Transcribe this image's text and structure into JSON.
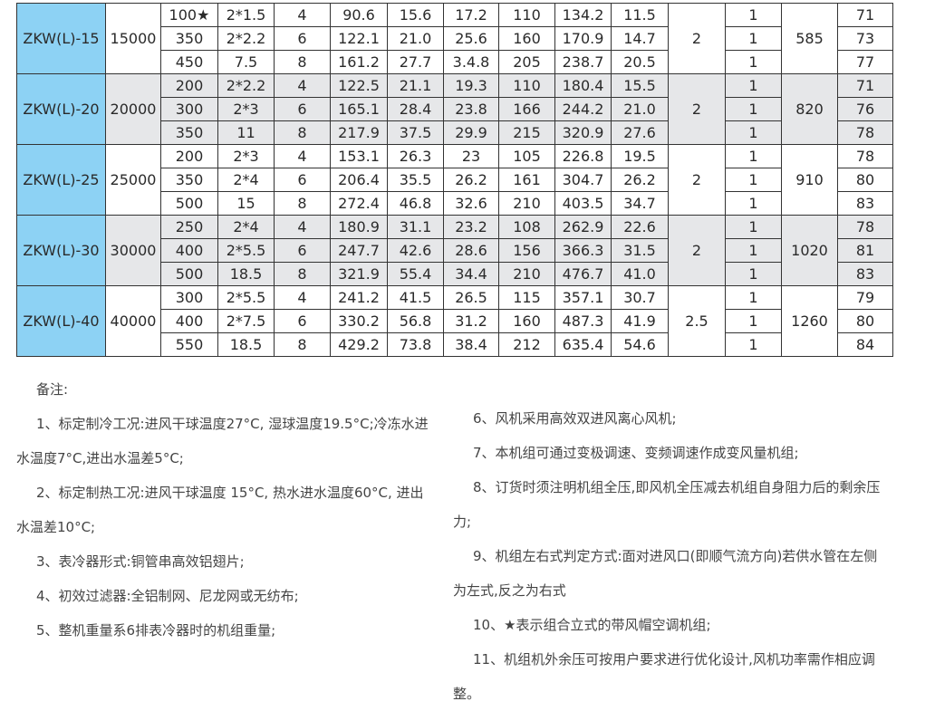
{
  "table": {
    "groups": [
      {
        "model": "ZKW(L)-15",
        "airflow": "15000",
        "col11": "2",
        "weight": "585",
        "shade": false,
        "rows": [
          [
            "100★",
            "2*1.5",
            "4",
            "90.6",
            "15.6",
            "17.2",
            "110",
            "134.2",
            "11.5",
            "1",
            "71"
          ],
          [
            "350",
            "2*2.2",
            "6",
            "122.1",
            "21.0",
            "25.6",
            "160",
            "170.9",
            "14.7",
            "1",
            "73"
          ],
          [
            "450",
            "7.5",
            "8",
            "161.2",
            "27.7",
            "3.4.8",
            "205",
            "238.7",
            "20.5",
            "1",
            "77"
          ]
        ]
      },
      {
        "model": "ZKW(L)-20",
        "airflow": "20000",
        "col11": "2",
        "weight": "820",
        "shade": true,
        "rows": [
          [
            "200",
            "2*2.2",
            "4",
            "122.5",
            "21.1",
            "19.3",
            "110",
            "180.4",
            "15.5",
            "1",
            "71"
          ],
          [
            "300",
            "2*3",
            "6",
            "165.1",
            "28.4",
            "23.8",
            "166",
            "244.2",
            "21.0",
            "1",
            "76"
          ],
          [
            "350",
            "11",
            "8",
            "217.9",
            "37.5",
            "29.9",
            "215",
            "320.9",
            "27.6",
            "1",
            "78"
          ]
        ]
      },
      {
        "model": "ZKW(L)-25",
        "airflow": "25000",
        "col11": "2",
        "weight": "910",
        "shade": false,
        "rows": [
          [
            "200",
            "2*3",
            "4",
            "153.1",
            "26.3",
            "23",
            "105",
            "226.8",
            "19.5",
            "1",
            "78"
          ],
          [
            "350",
            "2*4",
            "6",
            "206.4",
            "35.5",
            "26.2",
            "161",
            "304.7",
            "26.2",
            "1",
            "80"
          ],
          [
            "500",
            "15",
            "8",
            "272.4",
            "46.8",
            "32.6",
            "210",
            "403.5",
            "34.7",
            "1",
            "83"
          ]
        ]
      },
      {
        "model": "ZKW(L)-30",
        "airflow": "30000",
        "col11": "2",
        "weight": "1020",
        "shade": true,
        "rows": [
          [
            "250",
            "2*4",
            "4",
            "180.9",
            "31.1",
            "23.2",
            "108",
            "262.9",
            "22.6",
            "1",
            "78"
          ],
          [
            "400",
            "2*5.5",
            "6",
            "247.7",
            "42.6",
            "28.6",
            "156",
            "366.3",
            "31.5",
            "1",
            "81"
          ],
          [
            "500",
            "18.5",
            "8",
            "321.9",
            "55.4",
            "34.4",
            "210",
            "476.7",
            "41.0",
            "1",
            "83"
          ]
        ]
      },
      {
        "model": "ZKW(L)-40",
        "airflow": "40000",
        "col11": "2.5",
        "weight": "1260",
        "shade": false,
        "rows": [
          [
            "300",
            "2*5.5",
            "4",
            "241.2",
            "41.5",
            "26.5",
            "115",
            "357.1",
            "30.7",
            "1",
            "79"
          ],
          [
            "400",
            "2*7.5",
            "6",
            "330.2",
            "56.8",
            "31.2",
            "160",
            "487.3",
            "41.9",
            "1",
            "80"
          ],
          [
            "550",
            "18.5",
            "8",
            "429.2",
            "73.8",
            "38.4",
            "212",
            "635.4",
            "54.6",
            "1",
            "84"
          ]
        ]
      }
    ],
    "colors": {
      "model_bg": "#8dd2f4",
      "shade_bg": "#e6e7e9"
    }
  },
  "notes": {
    "title": "备注:",
    "left": [
      "1、标定制冷工况:进风干球温度27°C, 湿球温度19.5°C;冷冻水进水温度7°C,进出水温差5°C;",
      "2、标定制热工况:进风干球温度 15°C, 热水进水温度60°C, 进出水温差10°C;",
      "3、表冷器形式:铜管串高效铝翅片;",
      "4、初效过滤器:全铝制网、尼龙网或无纺布;",
      "5、整机重量系6排表冷器时的机组重量;"
    ],
    "right": [
      "6、风机采用高效双进风离心风机;",
      "7、本机组可通过变极调速、变频调速作成变风量机组;",
      "8、订货时须注明机组全压,即风机全压减去机组自身阻力后的剩余压力;",
      "9、机组左右式判定方式:面对进风口(即顺气流方向)若供水管在左侧为左式,反之为右式",
      "10、★表示组合立式的带风帽空调机组;",
      "11、机组机外余压可按用户要求进行优化设计,风机功率需作相应调整。"
    ]
  }
}
